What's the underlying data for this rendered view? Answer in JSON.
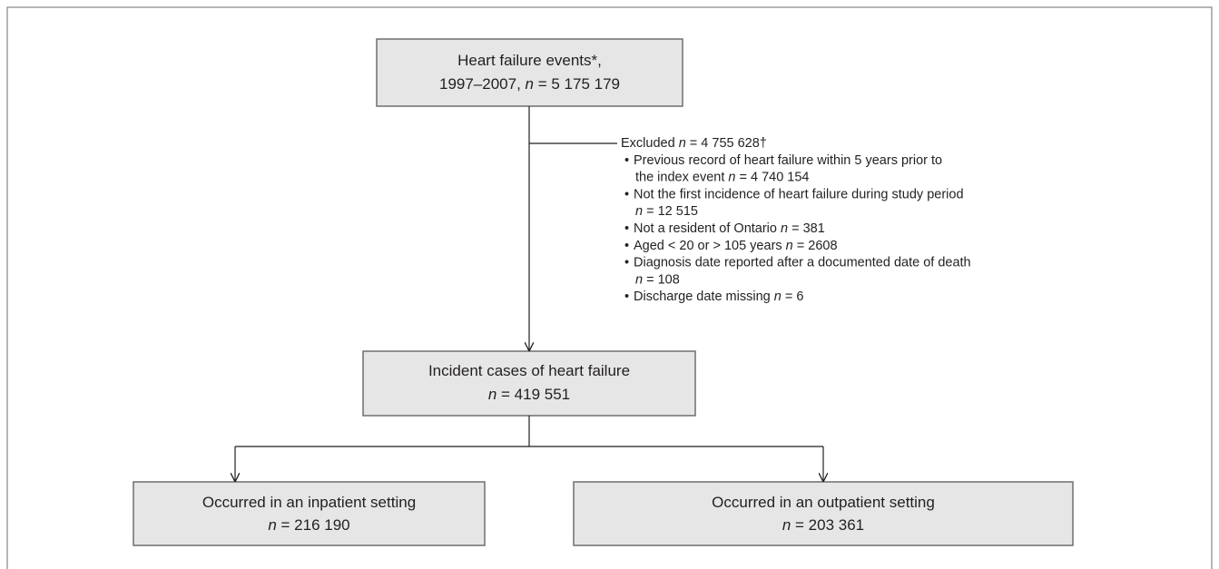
{
  "nodes": [
    {
      "lines": [
        "Heart failure events*,",
        "1997–2007,  n = 5 175 179"
      ]
    },
    {
      "lines": [
        "Incident cases of heart failure",
        "n = 419 551"
      ]
    },
    {
      "lines": [
        "Occurred in an inpatient setting",
        "n = 216 190"
      ]
    },
    {
      "lines": [
        "Occurred in an outpatient setting",
        "n = 203 361"
      ]
    }
  ],
  "exclusion": {
    "header": "Excluded  n = 4 755 628†",
    "bullet": "•",
    "items": [
      {
        "lines": [
          "Previous record of heart failure within 5 years prior to",
          "the index event  n = 4 740 154"
        ]
      },
      {
        "lines": [
          "Not the first incidence of heart failure during study period",
          "n = 12 515"
        ]
      },
      {
        "lines": [
          "Not a resident of Ontario  n = 381"
        ]
      },
      {
        "lines": [
          "Aged < 20 or > 105 years  n = 2608"
        ]
      },
      {
        "lines": [
          "Diagnosis date reported after a documented date of death",
          "n = 108"
        ]
      },
      {
        "lines": [
          "Discharge date missing  n = 6"
        ]
      }
    ]
  }
}
